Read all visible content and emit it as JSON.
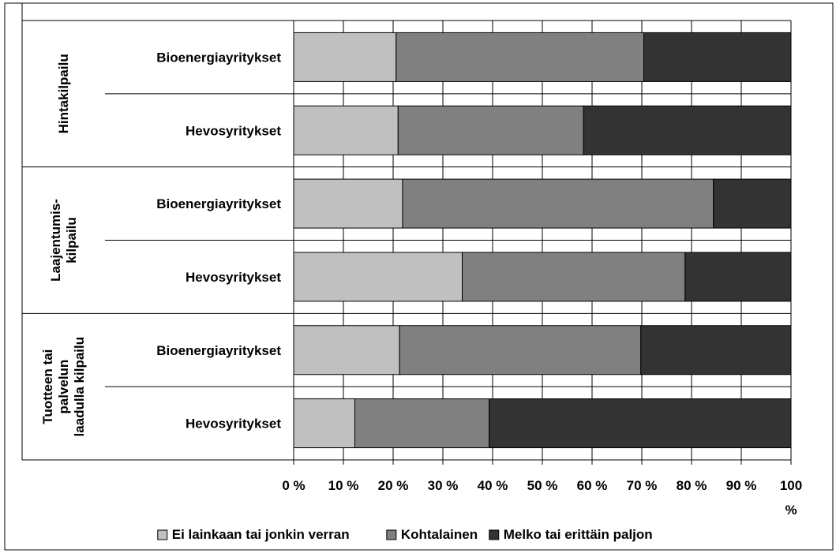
{
  "chart_data": {
    "type": "bar",
    "orientation": "horizontal",
    "stacked": "percent",
    "groups": [
      {
        "label_lines": [
          "Hintakilpailu"
        ],
        "categories": [
          "Bioenergiayritykset",
          "Hevosyritykset"
        ]
      },
      {
        "label_lines": [
          "Laajentumis-",
          "kilpailu"
        ],
        "categories": [
          "Bioenergiayritykset",
          "Hevosyritykset"
        ]
      },
      {
        "label_lines": [
          "Tuotteen tai",
          "palvelun",
          "laadulla kilpailu"
        ],
        "categories": [
          "Bioenergiayritykset",
          "Hevosyritykset"
        ]
      }
    ],
    "categories": [
      "Bioenergiayritykset",
      "Hevosyritykset",
      "Bioenergiayritykset",
      "Hevosyritykset",
      "Bioenergiayritykset",
      "Hevosyritykset"
    ],
    "series": [
      {
        "name": "Ei lainkaan tai jonkin verran",
        "color": "#c0c0c0",
        "values": [
          20.6,
          21.0,
          21.9,
          33.9,
          21.3,
          12.3
        ]
      },
      {
        "name": "Kohtalainen",
        "color": "#808080",
        "values": [
          49.8,
          37.3,
          62.5,
          44.8,
          48.5,
          27.0
        ]
      },
      {
        "name": "Melko tai erittäin paljon",
        "color": "#333333",
        "values": [
          29.6,
          41.7,
          15.6,
          21.3,
          30.2,
          60.7
        ]
      }
    ],
    "xlim": [
      0,
      100
    ],
    "x_ticks": [
      "0 %",
      "10 %",
      "20 %",
      "30 %",
      "40 %",
      "50 %",
      "60 %",
      "70 %",
      "80 %",
      "90 %",
      "100 %"
    ],
    "grid": true,
    "legend_position": "bottom",
    "title": "",
    "xlabel": "",
    "ylabel": ""
  }
}
